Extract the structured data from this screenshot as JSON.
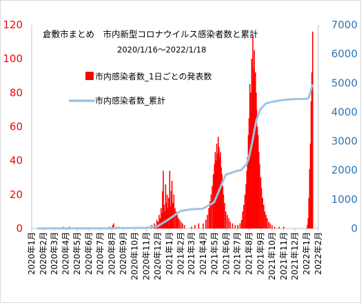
{
  "chart_data": {
    "type": "bar+line",
    "title": "倉敷市まとめ　市内新型コロナウイルス感染者数と累計",
    "subtitle": "2020/1/16〜2022/1/18",
    "legend": {
      "bar_label": "市内感染者数_1日ごとの発表数",
      "line_label": "市内感染者数_累計",
      "placement": "upper-left inside plot"
    },
    "colors": {
      "bar": "#ff0000",
      "line": "#9dc3e6",
      "left_axis": "#ff0000",
      "right_axis": "#2e75b6"
    },
    "y_left": {
      "range": [
        0,
        120
      ],
      "ticks": [
        "0",
        "20",
        "40",
        "60",
        "80",
        "100",
        "120"
      ]
    },
    "y_right": {
      "range": [
        0,
        7000
      ],
      "ticks": [
        "0",
        "1000",
        "2000",
        "3000",
        "4000",
        "5000",
        "6000",
        "7000"
      ]
    },
    "x_ticks": [
      "2020年1月",
      "2020年2月",
      "2020年3月",
      "2020年4月",
      "2020年5月",
      "2020年6月",
      "2020年7月",
      "2020年8月",
      "2020年9月",
      "2020年10月",
      "2020年11月",
      "2020年12月",
      "2021年1月",
      "2021年2月",
      "2021年3月",
      "2021年4月",
      "2021年5月",
      "2021年6月",
      "2021年7月",
      "2021年8月",
      "2021年9月",
      "2021年10月",
      "2021年11月",
      "2021年12月",
      "2022年1月",
      "2022年2月"
    ],
    "daily_series": {
      "name": "市内感染者数_1日ごとの発表数",
      "points": [
        [
          "2020-03-25",
          1
        ],
        [
          "2020-04-10",
          1
        ],
        [
          "2020-07-25",
          1
        ],
        [
          "2020-08-03",
          2
        ],
        [
          "2020-08-06",
          3
        ],
        [
          "2020-08-12",
          1
        ],
        [
          "2020-08-20",
          1
        ],
        [
          "2020-10-10",
          1
        ],
        [
          "2020-11-05",
          1
        ],
        [
          "2020-11-15",
          2
        ],
        [
          "2020-11-22",
          3
        ],
        [
          "2020-11-25",
          2
        ],
        [
          "2020-11-29",
          5
        ],
        [
          "2020-12-02",
          4
        ],
        [
          "2020-12-05",
          8
        ],
        [
          "2020-12-08",
          6
        ],
        [
          "2020-12-10",
          12
        ],
        [
          "2020-12-12",
          9
        ],
        [
          "2020-12-14",
          22
        ],
        [
          "2020-12-16",
          34
        ],
        [
          "2020-12-18",
          14
        ],
        [
          "2020-12-20",
          10
        ],
        [
          "2020-12-22",
          26
        ],
        [
          "2020-12-24",
          15
        ],
        [
          "2020-12-26",
          20
        ],
        [
          "2020-12-28",
          12
        ],
        [
          "2020-12-30",
          18
        ],
        [
          "2021-01-02",
          34
        ],
        [
          "2021-01-04",
          13
        ],
        [
          "2021-01-06",
          22
        ],
        [
          "2021-01-08",
          28
        ],
        [
          "2021-01-10",
          15
        ],
        [
          "2021-01-13",
          20
        ],
        [
          "2021-01-16",
          12
        ],
        [
          "2021-01-19",
          10
        ],
        [
          "2021-01-22",
          8
        ],
        [
          "2021-01-25",
          6
        ],
        [
          "2021-01-28",
          5
        ],
        [
          "2021-02-01",
          4
        ],
        [
          "2021-02-05",
          3
        ],
        [
          "2021-02-10",
          2
        ],
        [
          "2021-03-01",
          1
        ],
        [
          "2021-03-10",
          2
        ],
        [
          "2021-03-20",
          3
        ],
        [
          "2021-04-01",
          3
        ],
        [
          "2021-04-08",
          5
        ],
        [
          "2021-04-12",
          8
        ],
        [
          "2021-04-16",
          12
        ],
        [
          "2021-04-19",
          16
        ],
        [
          "2021-04-22",
          20
        ],
        [
          "2021-04-25",
          25
        ],
        [
          "2021-04-28",
          32
        ],
        [
          "2021-05-01",
          38
        ],
        [
          "2021-05-03",
          45
        ],
        [
          "2021-05-05",
          40
        ],
        [
          "2021-05-07",
          50
        ],
        [
          "2021-05-09",
          44
        ],
        [
          "2021-05-11",
          54
        ],
        [
          "2021-05-13",
          48
        ],
        [
          "2021-05-15",
          42
        ],
        [
          "2021-05-17",
          45
        ],
        [
          "2021-05-19",
          36
        ],
        [
          "2021-05-21",
          32
        ],
        [
          "2021-05-23",
          25
        ],
        [
          "2021-05-25",
          20
        ],
        [
          "2021-05-28",
          15
        ],
        [
          "2021-05-31",
          10
        ],
        [
          "2021-06-04",
          8
        ],
        [
          "2021-06-08",
          6
        ],
        [
          "2021-06-12",
          4
        ],
        [
          "2021-06-18",
          3
        ],
        [
          "2021-06-25",
          2
        ],
        [
          "2021-07-02",
          2
        ],
        [
          "2021-07-08",
          3
        ],
        [
          "2021-07-12",
          5
        ],
        [
          "2021-07-15",
          10
        ],
        [
          "2021-07-18",
          14
        ],
        [
          "2021-07-21",
          20
        ],
        [
          "2021-07-24",
          26
        ],
        [
          "2021-07-26",
          34
        ],
        [
          "2021-07-28",
          42
        ],
        [
          "2021-07-30",
          55
        ],
        [
          "2021-08-01",
          65
        ],
        [
          "2021-08-03",
          85
        ],
        [
          "2021-08-04",
          75
        ],
        [
          "2021-08-05",
          80
        ],
        [
          "2021-08-07",
          70
        ],
        [
          "2021-08-08",
          100
        ],
        [
          "2021-08-10",
          90
        ],
        [
          "2021-08-11",
          114
        ],
        [
          "2021-08-12",
          95
        ],
        [
          "2021-08-14",
          88
        ],
        [
          "2021-08-15",
          105
        ],
        [
          "2021-08-17",
          75
        ],
        [
          "2021-08-18",
          92
        ],
        [
          "2021-08-20",
          80
        ],
        [
          "2021-08-21",
          70
        ],
        [
          "2021-08-23",
          60
        ],
        [
          "2021-08-25",
          55
        ],
        [
          "2021-08-27",
          45
        ],
        [
          "2021-08-29",
          38
        ],
        [
          "2021-09-01",
          30
        ],
        [
          "2021-09-03",
          24
        ],
        [
          "2021-09-06",
          18
        ],
        [
          "2021-09-09",
          14
        ],
        [
          "2021-09-12",
          10
        ],
        [
          "2021-09-15",
          8
        ],
        [
          "2021-09-18",
          6
        ],
        [
          "2021-09-22",
          4
        ],
        [
          "2021-09-26",
          3
        ],
        [
          "2021-10-01",
          2
        ],
        [
          "2021-10-08",
          1
        ],
        [
          "2021-10-20",
          1
        ],
        [
          "2021-11-01",
          1
        ],
        [
          "2022-01-03",
          2
        ],
        [
          "2022-01-05",
          6
        ],
        [
          "2022-01-07",
          18
        ],
        [
          "2022-01-09",
          35
        ],
        [
          "2022-01-11",
          50
        ],
        [
          "2022-01-13",
          75
        ],
        [
          "2022-01-15",
          92
        ],
        [
          "2022-01-17",
          116
        ]
      ]
    },
    "cumulative_series": {
      "name": "市内感染者数_累計",
      "points": [
        [
          "2020-01-16",
          0
        ],
        [
          "2020-03-01",
          2
        ],
        [
          "2020-07-20",
          4
        ],
        [
          "2020-08-20",
          15
        ],
        [
          "2020-10-31",
          20
        ],
        [
          "2020-11-30",
          70
        ],
        [
          "2020-12-31",
          320
        ],
        [
          "2021-01-31",
          600
        ],
        [
          "2021-02-28",
          660
        ],
        [
          "2021-03-31",
          680
        ],
        [
          "2021-04-30",
          900
        ],
        [
          "2021-05-31",
          1850
        ],
        [
          "2021-06-30",
          1980
        ],
        [
          "2021-07-10",
          2000
        ],
        [
          "2021-07-25",
          2200
        ],
        [
          "2021-07-31",
          2400
        ],
        [
          "2021-08-10",
          3000
        ],
        [
          "2021-08-20",
          3700
        ],
        [
          "2021-08-31",
          4100
        ],
        [
          "2021-09-15",
          4300
        ],
        [
          "2021-09-30",
          4350
        ],
        [
          "2021-10-31",
          4420
        ],
        [
          "2021-11-30",
          4450
        ],
        [
          "2021-12-31",
          4455
        ],
        [
          "2022-01-06",
          4480
        ],
        [
          "2022-01-10",
          4620
        ],
        [
          "2022-01-14",
          4850
        ],
        [
          "2022-01-18",
          4950
        ]
      ]
    }
  }
}
